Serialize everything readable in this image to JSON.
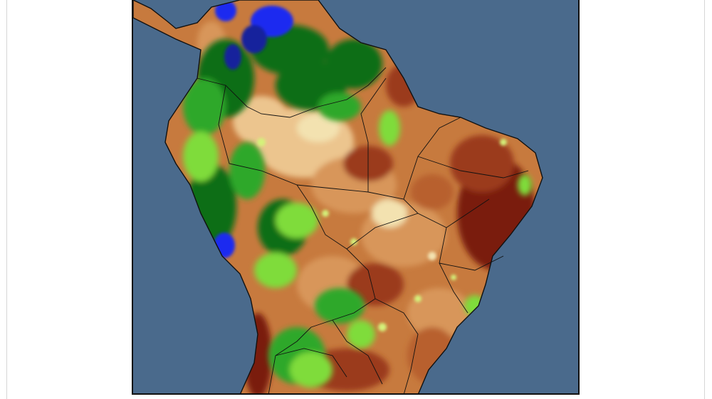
{
  "map": {
    "region": "South America",
    "ocean_color": "#4a6a8c",
    "border_color": "#111111",
    "palette": {
      "dark_red": "#7a1c0f",
      "red_brown": "#9b3b1c",
      "brown": "#b8602e",
      "light_brown": "#d8965a",
      "tan": "#ecc58e",
      "cream": "#f3e2b0",
      "yellow_green": "#d4f27a",
      "light_green": "#7fdc3a",
      "green": "#2ea82a",
      "dark_green": "#0f6e18",
      "blue": "#1a2cf0",
      "dark_blue": "#14249c"
    }
  }
}
